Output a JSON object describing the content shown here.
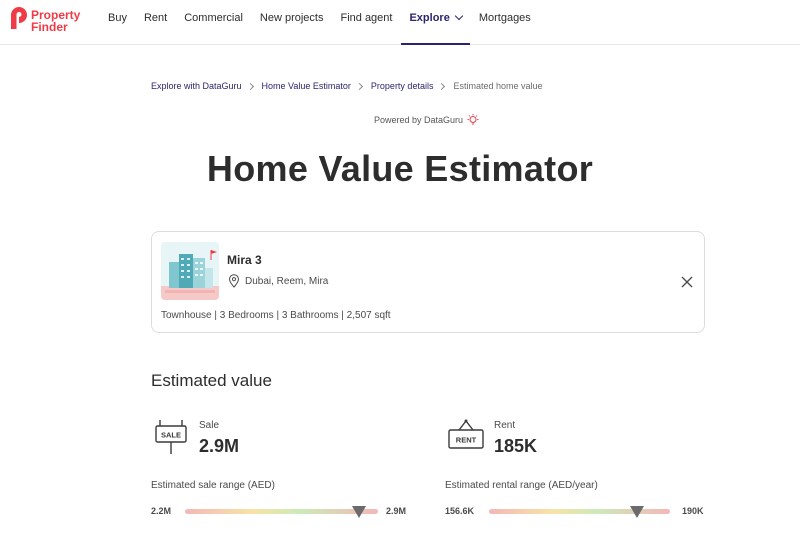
{
  "header": {
    "logo": {
      "line1": "Property",
      "line2": "Finder",
      "brand_color": "#ef3b45"
    },
    "nav": [
      {
        "label": "Buy"
      },
      {
        "label": "Rent"
      },
      {
        "label": "Commercial"
      },
      {
        "label": "New projects"
      },
      {
        "label": "Find agent"
      },
      {
        "label": "Explore",
        "active": true,
        "icon": "chevron-down-icon"
      },
      {
        "label": "Mortgages"
      }
    ]
  },
  "breadcrumb": [
    "Explore with DataGuru",
    "Home Value Estimator",
    "Property details",
    "Estimated home value"
  ],
  "powered_by": "Powered by DataGuru",
  "page_title": "Home Value Estimator",
  "property": {
    "name": "Mira 3",
    "location": "Dubai, Reem, Mira",
    "specs": "Townhouse | 3 Bedrooms | 3 Bathrooms | 2,507 sqft",
    "location_icon": "map-pin-icon",
    "close_icon": "close-icon"
  },
  "estimated": {
    "section_title": "Estimated value",
    "sale": {
      "label": "Sale",
      "value": "2.9M",
      "sign_text": "SALE",
      "range_title": "Estimated sale range (AED)",
      "min": "2.2M",
      "max": "2.9M",
      "marker_position": 0.9
    },
    "rent": {
      "label": "Rent",
      "value": "185K",
      "sign_text": "RENT",
      "range_title": "Estimated rental range (AED/year)",
      "min": "156.6K",
      "max": "190K",
      "marker_position": 0.82
    }
  },
  "colors": {
    "accent": "#2b2570",
    "brand": "#ef3b45",
    "text": "#2d2d2d"
  }
}
